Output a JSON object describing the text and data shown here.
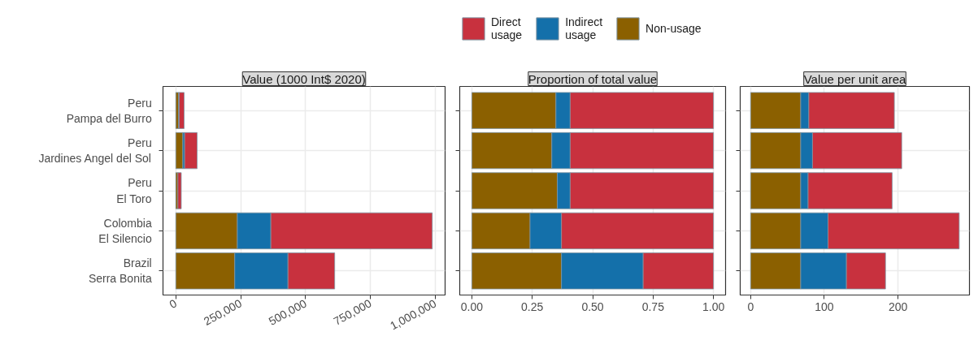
{
  "chart_data": [
    {
      "type": "bar",
      "orientation": "horizontal",
      "stacked": true,
      "title": "Value (1000 Int$ 2020)",
      "categories": [
        "Peru\nPampa del Burro",
        "Peru\nJardines Angel del Sol",
        "Peru\nEl Toro",
        "Colombia\nEl Silencio",
        "Brazil\nSerra Bonita"
      ],
      "series": [
        {
          "color": "#8b6000",
          "values": [
            11000,
            27000,
            8000,
            237000,
            227000
          ]
        },
        {
          "color": "#1470aa",
          "values": [
            2000,
            7000,
            null,
            129000,
            205000
          ]
        },
        {
          "color": "#c8313e",
          "values": [
            19000,
            48000,
            13000,
            622000,
            180000
          ]
        }
      ],
      "xlim": [
        -49400,
        1037400
      ],
      "xticks": [
        0,
        {
          "value": 250000,
          "label": "250,000"
        },
        {
          "value": 500000,
          "label": "500,000"
        },
        {
          "value": 750000,
          "label": "750,000"
        },
        {
          "value": 1000000,
          "label": "1,000,000"
        }
      ],
      "grid": true,
      "legend": false
    },
    {
      "type": "bar",
      "orientation": "horizontal",
      "stacked": true,
      "title": "Proportion of total value",
      "categories": [
        null,
        null,
        null,
        null,
        null
      ],
      "series": [
        {
          "name": "Non-usage",
          "color": "#8b6000",
          "values": [
            0.348,
            0.331,
            0.354,
            0.241,
            0.371
          ]
        },
        {
          "name": "Indirect usage",
          "color": "#1470aa",
          "values": [
            0.059,
            0.076,
            0.053,
            0.13,
            0.338
          ]
        },
        {
          "name": "Direct usage",
          "color": "#c8313e",
          "values": [
            0.593,
            0.593,
            0.593,
            0.629,
            0.291
          ]
        }
      ],
      "xlim": [
        -0.05,
        1.05
      ],
      "xticks": [
        {
          "value": 0,
          "label": "0.00"
        },
        {
          "value": 0.25,
          "label": "0.25"
        },
        {
          "value": 0.5,
          "label": "0.50"
        },
        {
          "value": 0.75,
          "label": "0.75"
        },
        {
          "value": 1,
          "label": "1.00"
        }
      ],
      "grid": true,
      "legend": "top",
      "tick_labels": "x"
    },
    {
      "type": "bar",
      "orientation": "horizontal",
      "stacked": true,
      "title": "Value per unit area",
      "categories": [
        null,
        null,
        null,
        null,
        null
      ],
      "series": [
        {
          "color": "#8b6000",
          "values": [
            68,
            68,
            68,
            68,
            68
          ]
        },
        {
          "color": "#1470aa",
          "values": [
            11,
            16,
            10,
            37,
            62
          ]
        },
        {
          "color": "#c8313e",
          "values": [
            116,
            121,
            114,
            178,
            53
          ]
        }
      ],
      "xlim": [
        -14.1,
        296.9
      ],
      "xticks": [
        0,
        100,
        200
      ],
      "grid": true,
      "legend": false,
      "tick_labels": "x"
    }
  ]
}
